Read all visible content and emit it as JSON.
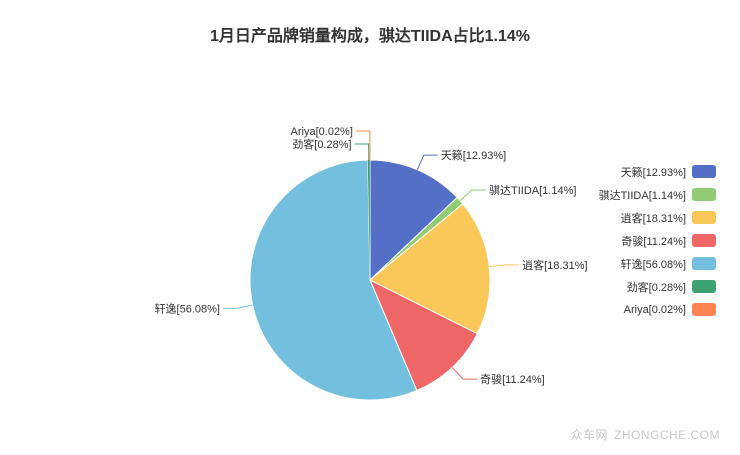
{
  "title": "1月日产品牌销量构成，骐达TIIDA占比1.14%",
  "watermark": {
    "cn": "众车网",
    "en": "ZHONGCHE.COM"
  },
  "chart_data": {
    "type": "pie",
    "title": "1月日产品牌销量构成，骐达TIIDA占比1.14%",
    "legend_position": "right",
    "slices": [
      {
        "name": "天籁",
        "value": 12.93,
        "label": "天籁[12.93%]",
        "color": "#5470c6"
      },
      {
        "name": "骐达TIIDA",
        "value": 1.14,
        "label": "骐达TIIDA[1.14%]",
        "color": "#91cc75"
      },
      {
        "name": "逍客",
        "value": 18.31,
        "label": "逍客[18.31%]",
        "color": "#fac858"
      },
      {
        "name": "奇骏",
        "value": 11.24,
        "label": "奇骏[11.24%]",
        "color": "#ee6666"
      },
      {
        "name": "轩逸",
        "value": 56.08,
        "label": "轩逸[56.08%]",
        "color": "#73c0de"
      },
      {
        "name": "劲客",
        "value": 0.28,
        "label": "劲客[0.28%]",
        "color": "#3ba272"
      },
      {
        "name": "Ariya",
        "value": 0.02,
        "label": "Ariya[0.02%]",
        "color": "#fc8452"
      }
    ]
  }
}
